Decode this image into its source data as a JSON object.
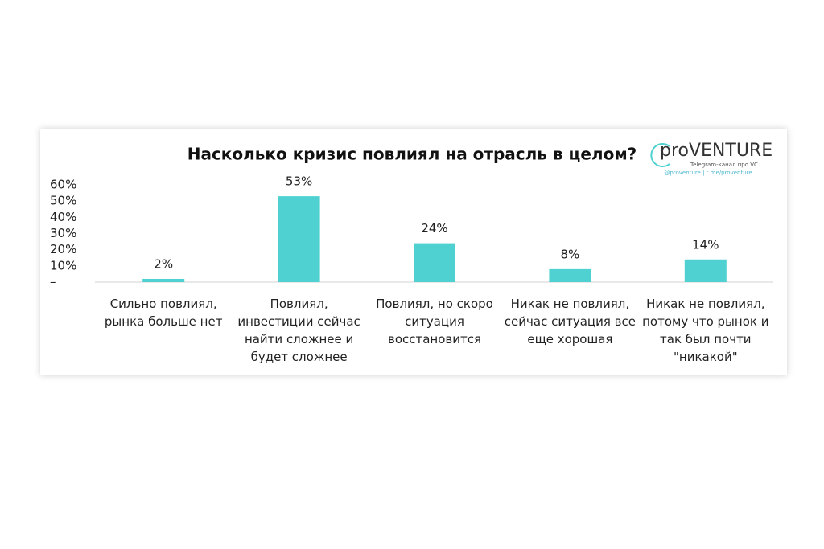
{
  "chart_data": {
    "type": "bar",
    "title": "Насколько кризис повлиял на отрасль в целом?",
    "logo": {
      "name": "proVENTURE",
      "tagline": "Telegram-канал про VC",
      "links": "@proventure | t.me/proventure"
    },
    "categories": [
      "Сильно повлиял,\nрынка больше нет",
      "Повлиял,\nинвестиции сейчас\nнайти сложнее и\nбудет сложнее",
      "Повлиял, но скоро\nситуация\nвосстановится",
      "Никак не повлиял,\nсейчас ситуация все\nеще хорошая",
      "Никак не повлиял,\nпотому что рынок и\nтак был почти\n\"никакой\""
    ],
    "values": [
      2,
      53,
      24,
      8,
      14
    ],
    "value_labels": [
      "2%",
      "53%",
      "24%",
      "8%",
      "14%"
    ],
    "color": "#4fd1d1",
    "ylim": [
      0,
      60
    ],
    "yticks": [
      {
        "value": 0,
        "label": "–"
      },
      {
        "value": 10,
        "label": "10%"
      },
      {
        "value": 20,
        "label": "20%"
      },
      {
        "value": 30,
        "label": "30%"
      },
      {
        "value": 40,
        "label": "40%"
      },
      {
        "value": 50,
        "label": "50%"
      },
      {
        "value": 60,
        "label": "60%"
      }
    ],
    "grid": false
  }
}
